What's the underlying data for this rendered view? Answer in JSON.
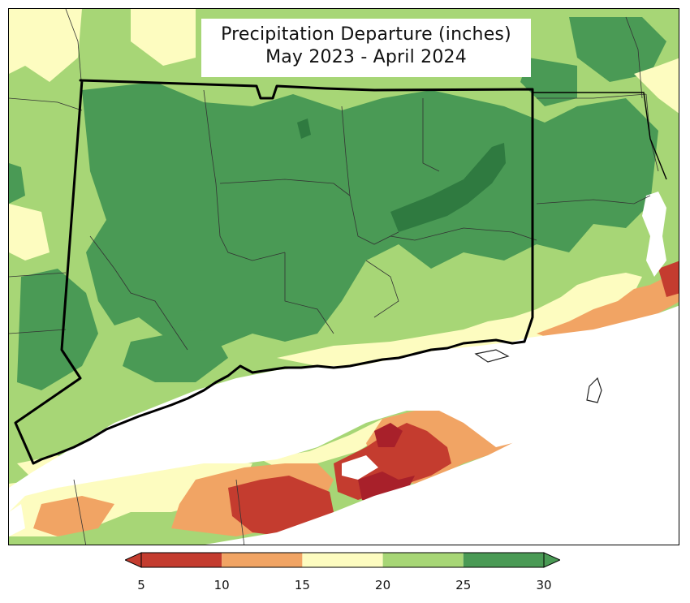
{
  "title": {
    "line1": "Precipitation Departure (inches)",
    "line2": "May 2023 - April 2024"
  },
  "legend": {
    "ticks": [
      "5",
      "10",
      "15",
      "20",
      "25",
      "30"
    ],
    "bins": [
      {
        "from": 5,
        "to": 10,
        "color": "#c43c2f"
      },
      {
        "from": 10,
        "to": 15,
        "color": "#f1a464"
      },
      {
        "from": 15,
        "to": 20,
        "color": "#fdfcc0"
      },
      {
        "from": 20,
        "to": 25,
        "color": "#a7d676"
      },
      {
        "from": 25,
        "to": 30,
        "color": "#4a9a55"
      }
    ],
    "under_color": "#c43c2f",
    "over_color": "#4a9a55"
  },
  "colors": {
    "dark_red": "#a8202a",
    "red": "#c43c2f",
    "orange": "#f1a464",
    "light_yellow": "#fdfcc0",
    "light_green": "#a7d676",
    "dark_green": "#4a9a55",
    "darkest_green": "#2f7a40",
    "water": "#ffffff",
    "border": "#000000"
  }
}
